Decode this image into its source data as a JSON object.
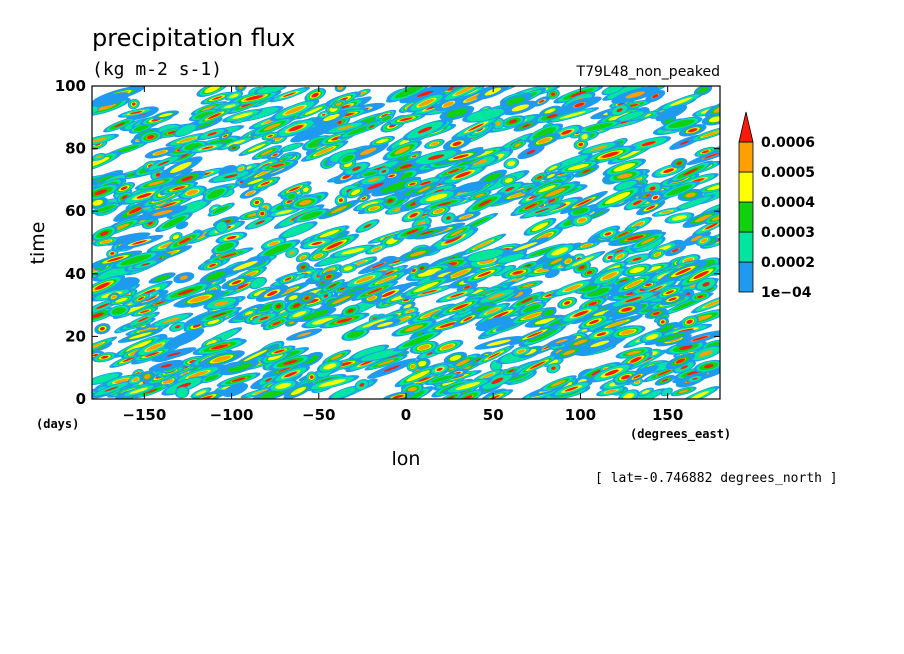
{
  "chart_data": {
    "type": "heatmap",
    "title": "precipitation flux",
    "units": "(kg m-2 s-1)",
    "subtitle_right": "T79L48_non_peaked",
    "xlabel": "lon",
    "ylabel": "time",
    "x_unit_label": "(degrees_east)",
    "y_unit_label": "(days)",
    "xlim": [
      -180,
      180
    ],
    "ylim": [
      0,
      100
    ],
    "xticks": [
      -150,
      -100,
      -50,
      0,
      50,
      100,
      150
    ],
    "yticks": [
      0,
      20,
      40,
      60,
      80,
      100
    ],
    "colorbar": {
      "levels": [
        "1e-04",
        "0.0002",
        "0.0003",
        "0.0004",
        "0.0005",
        "0.0006"
      ],
      "colors": [
        "#1e9bf0",
        "#00e6a0",
        "#10d010",
        "#ffff00",
        "#ffa000",
        "#ff1a0a"
      ]
    },
    "annotation": "[ lat=-0.746882 degrees_north ]"
  }
}
